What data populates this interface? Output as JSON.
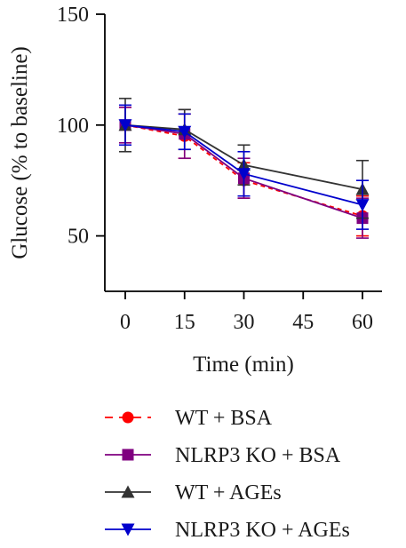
{
  "chart_data": {
    "type": "line",
    "xlabel": "Time (min)",
    "ylabel": "Glucose (% to baseline)",
    "xlim": [
      0,
      60
    ],
    "ylim": [
      25,
      150
    ],
    "xticks": [
      0,
      15,
      30,
      45,
      60
    ],
    "yticks": [
      50,
      100,
      150
    ],
    "grid": false,
    "legend_position": "bottom",
    "series": [
      {
        "name": "WT + BSA",
        "color": "#ff0000",
        "marker": "circle",
        "line_style": "dashed",
        "x": [
          0,
          15,
          30,
          60
        ],
        "y": [
          100,
          95,
          75,
          59
        ],
        "err": [
          8,
          10,
          8,
          9
        ]
      },
      {
        "name": "NLRP3 KO + BSA",
        "color": "#7f007f",
        "marker": "square",
        "line_style": "solid",
        "x": [
          0,
          15,
          30,
          60
        ],
        "y": [
          100,
          96,
          76,
          58
        ],
        "err": [
          8,
          11,
          9,
          9
        ]
      },
      {
        "name": "WT + AGEs",
        "color": "#333333",
        "marker": "triangle-up",
        "line_style": "solid",
        "x": [
          0,
          15,
          30,
          60
        ],
        "y": [
          100,
          98,
          82,
          71
        ],
        "err": [
          12,
          9,
          9,
          13
        ]
      },
      {
        "name": "NLRP3 KO + AGEs",
        "color": "#0000cc",
        "marker": "triangle-down",
        "line_style": "solid",
        "x": [
          0,
          15,
          30,
          60
        ],
        "y": [
          100,
          97,
          78,
          64
        ],
        "err": [
          9,
          8,
          10,
          11
        ]
      }
    ]
  }
}
